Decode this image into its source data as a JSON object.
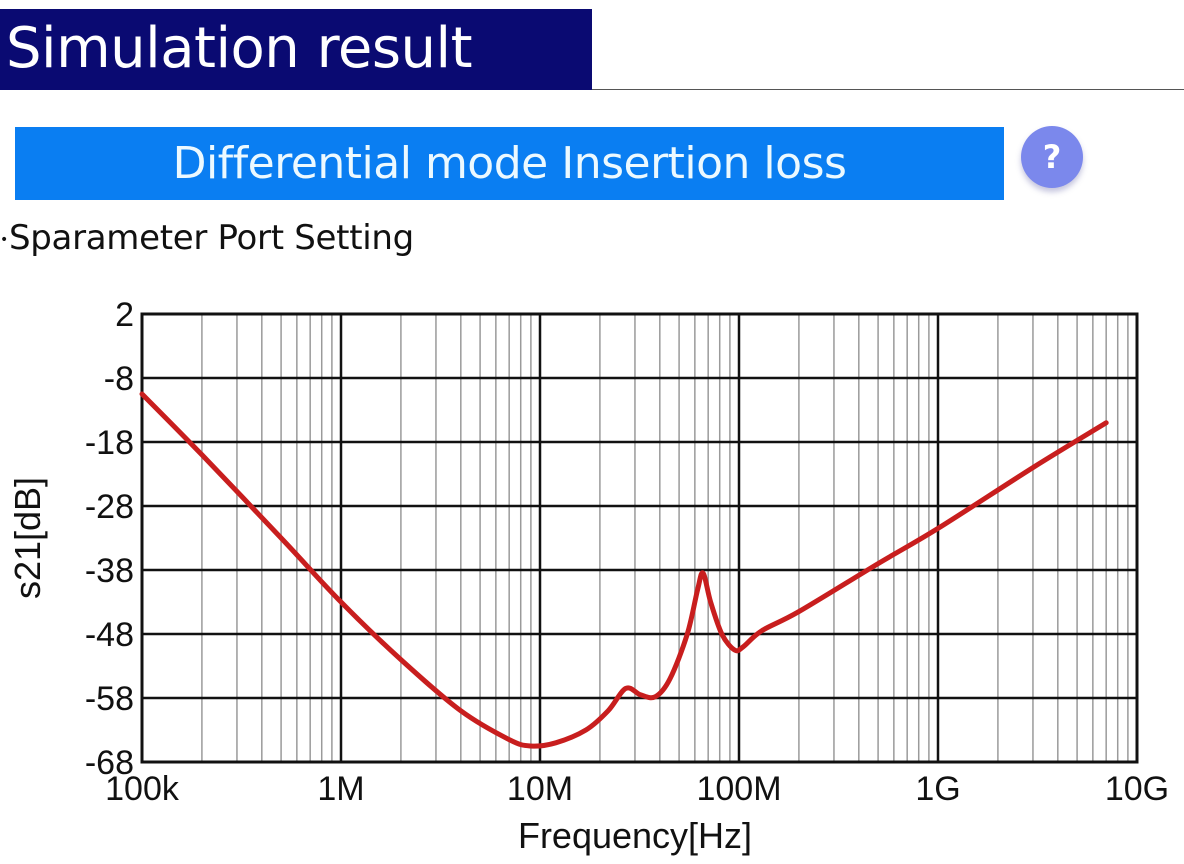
{
  "header": {
    "title": "Simulation result",
    "subtitle": "Differential mode Insertion loss",
    "help_icon": "question-mark-icon",
    "help_glyph": "?",
    "section_label": "Sparameter Port Setting",
    "section_bullet": "•"
  },
  "colors": {
    "title_bg": "#0a0a72",
    "banner_bg": "#0a7ef2",
    "help_bg": "#7b88ec",
    "curve": "#c81e1e"
  },
  "chart_data": {
    "type": "line",
    "title": "Differential mode Insertion loss",
    "xlabel": "Frequency[Hz]",
    "ylabel": "s21[dB]",
    "xscale": "log",
    "xlim": [
      100000,
      10000000000
    ],
    "ylim": [
      -68,
      2
    ],
    "x_ticks": [
      100000,
      1000000,
      10000000,
      100000000,
      1000000000,
      10000000000
    ],
    "x_tick_labels": [
      "100k",
      "1M",
      "10M",
      "100M",
      "1G",
      "10G"
    ],
    "y_ticks": [
      2,
      -8,
      -18,
      -28,
      -38,
      -48,
      -58,
      -68
    ],
    "y_tick_labels": [
      "2",
      "-8",
      "-18",
      "-28",
      "-38",
      "-48",
      "-58",
      "-68"
    ],
    "grid": true,
    "legend": null,
    "series": [
      {
        "name": "s21",
        "x": [
          100000,
          200000,
          500000,
          1000000,
          2000000,
          4000000,
          7000000,
          9000000,
          12000000,
          17000000,
          22000000,
          27000000,
          32000000,
          38000000,
          45000000,
          55000000,
          62000000,
          66000000,
          72000000,
          82000000,
          95000000,
          105000000,
          130000000,
          200000000,
          500000000,
          1000000000,
          3000000000,
          7000000000
        ],
        "y": [
          -10.5,
          -20,
          -33,
          -43,
          -52,
          -60,
          -64.5,
          -65.5,
          -65,
          -63,
          -60,
          -56.5,
          -57.5,
          -57.8,
          -55,
          -48,
          -41,
          -38.5,
          -43,
          -48,
          -50.5,
          -50,
          -47.5,
          -44.5,
          -37,
          -31.5,
          -22,
          -15
        ]
      }
    ]
  }
}
